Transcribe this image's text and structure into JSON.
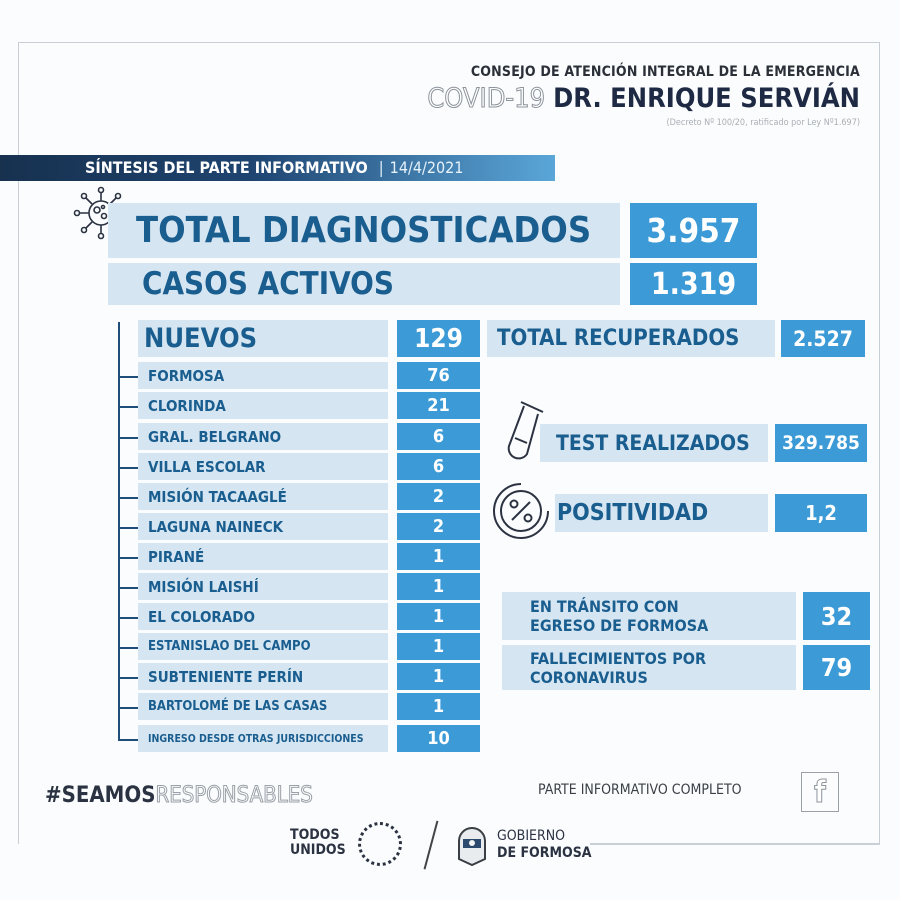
{
  "header": {
    "line1": "CONSEJO DE ATENCIÓN INTEGRAL DE LA EMERGENCIA",
    "covid": "COVID-19",
    "name": "DR. ENRIQUE SERVIÁN",
    "decree": "(Decreto Nº 100/20, ratificado por Ley Nº1.697)"
  },
  "banner": {
    "title": "SÍNTESIS DEL PARTE INFORMATIVO",
    "sep": "|",
    "date": "14/4/2021"
  },
  "total_diagnosticados": {
    "label": "TOTAL DIAGNOSTICADOS",
    "value": "3.957"
  },
  "casos_activos": {
    "label": "CASOS ACTIVOS",
    "value": "1.319"
  },
  "nuevos": {
    "label": "NUEVOS",
    "value": "129"
  },
  "localidades": [
    {
      "label": "FORMOSA",
      "value": "76"
    },
    {
      "label": "CLORINDA",
      "value": "21"
    },
    {
      "label": "GRAL. BELGRANO",
      "value": "6"
    },
    {
      "label": "VILLA ESCOLAR",
      "value": "6"
    },
    {
      "label": "MISIÓN TACAAGLÉ",
      "value": "2"
    },
    {
      "label": "LAGUNA NAINECK",
      "value": "2"
    },
    {
      "label": "PIRANÉ",
      "value": "1"
    },
    {
      "label": "MISIÓN LAISHÍ",
      "value": "1"
    },
    {
      "label": "EL COLORADO",
      "value": "1"
    },
    {
      "label": "ESTANISLAO DEL CAMPO",
      "value": "1"
    },
    {
      "label": "SUBTENIENTE PERÍN",
      "value": "1"
    },
    {
      "label": "BARTOLOMÉ DE LAS CASAS",
      "value": "1"
    },
    {
      "label": "INGRESO DESDE OTRAS JURISDICCIONES",
      "value": "10"
    }
  ],
  "recuperados": {
    "label": "TOTAL RECUPERADOS",
    "value": "2.527"
  },
  "tests": {
    "label": "TEST REALIZADOS",
    "value": "329.785"
  },
  "positividad": {
    "label": "POSITIVIDAD",
    "value": "1,2"
  },
  "transito": {
    "label1": "EN TRÁNSITO CON",
    "label2": "EGRESO DE FORMOSA",
    "value": "32"
  },
  "fallecimientos": {
    "label1": "FALLECIMIENTOS POR",
    "label2": "CORONAVIRUS",
    "value": "79"
  },
  "footer": {
    "hashtag_bold": "#SEAMOS",
    "hashtag_outline": "RESPONSABLES",
    "parte_completo": "PARTE INFORMATIVO COMPLETO",
    "todos": "TODOS",
    "unidos": "UNIDOS",
    "gobierno": "GOBIERNO",
    "de_formosa": "DE FORMOSA"
  },
  "colors": {
    "label_bg": "#d5e6f2",
    "value_bg": "#3c9bd6",
    "text_blue": "#1a5d8f",
    "banner": "#17314f"
  }
}
